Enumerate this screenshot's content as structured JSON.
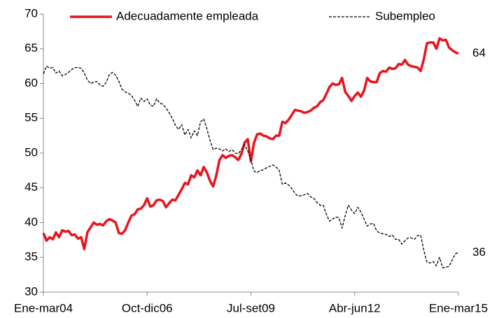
{
  "chart_data": {
    "type": "line",
    "categories": [
      "Ene-mar04",
      null,
      null,
      null,
      null,
      null,
      null,
      null,
      null,
      null,
      null,
      null,
      null,
      null,
      null,
      null,
      null,
      null,
      null,
      null,
      null,
      null,
      null,
      null,
      null,
      null,
      null,
      null,
      null,
      null,
      null,
      null,
      null,
      "Oct-dic06",
      null,
      null,
      null,
      null,
      null,
      null,
      null,
      null,
      null,
      null,
      null,
      null,
      null,
      null,
      null,
      null,
      null,
      null,
      null,
      null,
      null,
      null,
      null,
      null,
      null,
      null,
      null,
      null,
      null,
      null,
      null,
      null,
      "Jul-set09",
      null,
      null,
      null,
      null,
      null,
      null,
      null,
      null,
      null,
      null,
      null,
      null,
      null,
      null,
      null,
      null,
      null,
      null,
      null,
      null,
      null,
      null,
      null,
      null,
      null,
      null,
      null,
      null,
      null,
      null,
      null,
      null,
      "Abr-jun12",
      null,
      null,
      null,
      null,
      null,
      null,
      null,
      null,
      null,
      null,
      null,
      null,
      null,
      null,
      null,
      null,
      null,
      null,
      null,
      null,
      null,
      null,
      null,
      null,
      null,
      null,
      null,
      null,
      null,
      null,
      null,
      null,
      "Ene-mar15"
    ],
    "series": [
      {
        "name": "Adecuadamente empleada",
        "color": "#e8141b",
        "dashed": false,
        "end_label": "64",
        "values": [
          38.5,
          37.4,
          37.9,
          37.6,
          38.6,
          37.9,
          38.9,
          38.7,
          38.8,
          38.2,
          38.3,
          37.7,
          37.9,
          36.2,
          38.6,
          39.3,
          40.0,
          39.7,
          39.8,
          39.6,
          40.2,
          40.5,
          40.3,
          40.0,
          38.5,
          38.4,
          38.9,
          40.0,
          41.0,
          41.2,
          41.9,
          42.0,
          42.5,
          43.5,
          42.3,
          42.5,
          43.2,
          43.3,
          43.1,
          42.2,
          42.8,
          43.3,
          43.2,
          44.0,
          44.8,
          45.7,
          45.5,
          46.8,
          46.5,
          47.5,
          46.8,
          48.0,
          47.2,
          46.0,
          45.2,
          46.8,
          49.0,
          49.7,
          49.3,
          49.6,
          49.7,
          49.4,
          49.0,
          49.9,
          51.5,
          52.0,
          48.8,
          51.5,
          52.7,
          52.8,
          52.5,
          52.4,
          52.1,
          52.0,
          52.5,
          52.5,
          54.5,
          54.3,
          54.8,
          55.5,
          56.2,
          56.1,
          56.0,
          55.8,
          55.9,
          56.1,
          56.5,
          56.7,
          57.3,
          57.6,
          58.5,
          59.5,
          60.0,
          59.8,
          59.9,
          60.8,
          58.8,
          58.2,
          57.5,
          58.2,
          58.7,
          58.1,
          59.0,
          60.8,
          60.3,
          60.2,
          60.2,
          61.5,
          61.8,
          61.7,
          62.3,
          62.1,
          62.2,
          62.8,
          62.7,
          63.4,
          62.7,
          62.5,
          62.4,
          62.3,
          61.8,
          63.5,
          65.8,
          65.9,
          65.9,
          65.0,
          66.5,
          66.2,
          66.3,
          65.2,
          64.8,
          64.5,
          64.3
        ]
      },
      {
        "name": "Subempleo",
        "color": "#000000",
        "dashed": true,
        "end_label": "36",
        "values": [
          61.4,
          62.5,
          62.2,
          62.3,
          61.5,
          61.8,
          61.1,
          61.3,
          61.6,
          62.0,
          62.3,
          62.3,
          62.2,
          61.5,
          60.5,
          60.0,
          60.2,
          60.3,
          59.8,
          59.6,
          60.2,
          61.3,
          61.6,
          61.2,
          60.3,
          59.2,
          58.8,
          58.6,
          58.3,
          57.6,
          56.7,
          57.9,
          57.4,
          57.8,
          56.9,
          56.7,
          57.8,
          57.2,
          57.0,
          56.5,
          55.8,
          55.0,
          54.0,
          53.4,
          54.1,
          52.6,
          53.4,
          52.2,
          53.2,
          52.5,
          54.5,
          54.9,
          53.5,
          51.8,
          50.5,
          50.7,
          50.6,
          50.3,
          50.6,
          50.2,
          50.5,
          50.0,
          49.9,
          50.5,
          51.2,
          50.3,
          49.0,
          47.4,
          47.2,
          47.5,
          47.6,
          47.9,
          48.1,
          48.3,
          48.0,
          47.5,
          45.5,
          45.7,
          45.4,
          44.9,
          44.2,
          43.8,
          43.9,
          44.0,
          44.2,
          43.7,
          43.5,
          42.9,
          42.5,
          42.5,
          41.2,
          40.2,
          40.5,
          40.8,
          40.7,
          39.2,
          41.0,
          42.5,
          41.8,
          41.3,
          42.2,
          41.5,
          40.5,
          39.5,
          39.8,
          39.9,
          38.8,
          38.5,
          38.4,
          38.3,
          38.0,
          38.2,
          37.6,
          37.6,
          36.9,
          37.4,
          37.8,
          37.8,
          37.6,
          38.1,
          38.2,
          36.0,
          34.3,
          34.2,
          34.4,
          33.8,
          35.0,
          33.5,
          33.6,
          33.7,
          34.6,
          35.5,
          35.7
        ]
      }
    ],
    "ylim": [
      30,
      70
    ],
    "yticks": [
      30,
      35,
      40,
      45,
      50,
      55,
      60,
      65,
      70
    ],
    "grid": false,
    "legend": "top"
  }
}
